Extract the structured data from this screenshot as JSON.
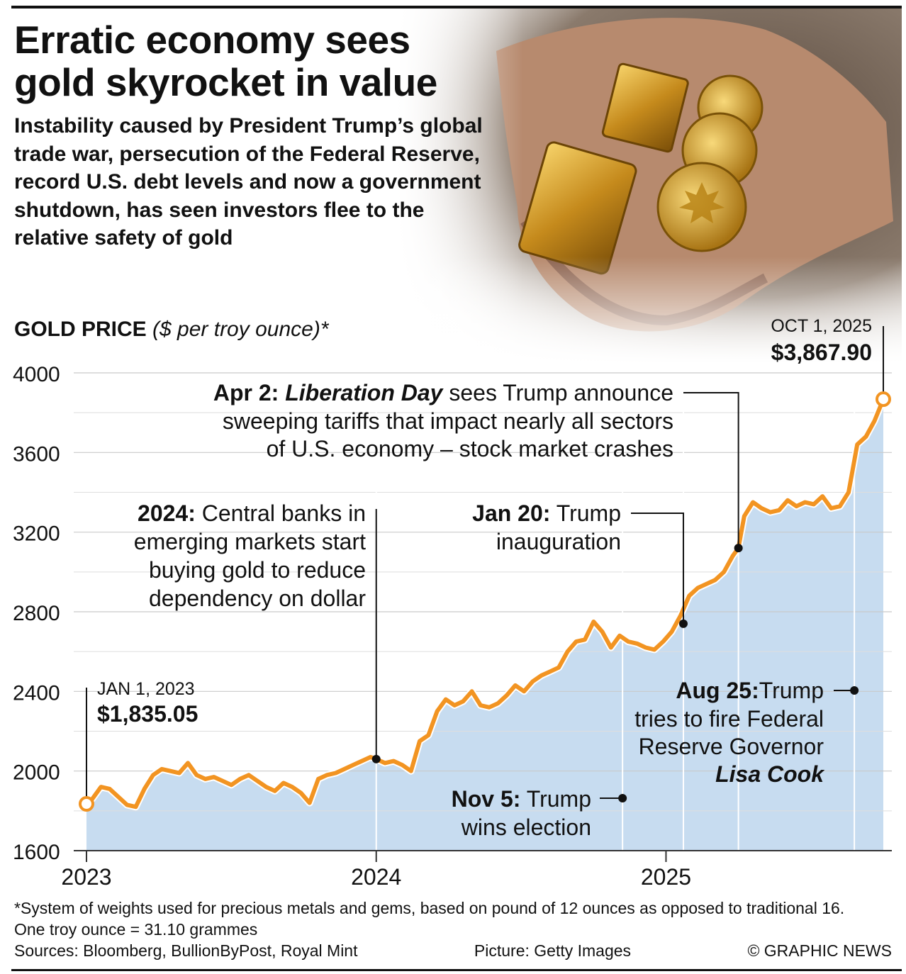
{
  "header": {
    "title_line1": "Erratic economy sees",
    "title_line2": "gold skyrocket in value",
    "subtitle": "Instability caused by President Trump’s global trade war, persecution of the Federal Reserve, record U.S. debt levels and now a government shutdown, has seen investors flee to the relative safety of gold"
  },
  "chart_heading": {
    "bold": "GOLD PRICE",
    "italic": "($ per troy ounce)*"
  },
  "chart_data": {
    "type": "area",
    "title": "GOLD PRICE ($ per troy ounce)*",
    "ylim": [
      1600,
      4000
    ],
    "yticks": [
      1600,
      2000,
      2400,
      2800,
      3200,
      3600,
      4000
    ],
    "ytick_labels": [
      "1600",
      "2000",
      "2400",
      "2800",
      "3200",
      "3600",
      "4000"
    ],
    "xlim": [
      2023.0,
      2025.76
    ],
    "xticks": [
      2023,
      2024,
      2025
    ],
    "xtick_labels": [
      "2023",
      "2024",
      "2025"
    ],
    "grid": "horizontal",
    "line_color": "#F29422",
    "fill_color": "#C7DCF0",
    "series": [
      {
        "x": [
          2023.0,
          2023.02,
          2023.05,
          2023.08,
          2023.11,
          2023.14,
          2023.17,
          2023.2,
          2023.23,
          2023.26,
          2023.29,
          2023.32,
          2023.35,
          2023.38,
          2023.41,
          2023.44,
          2023.47,
          2023.5,
          2023.53,
          2023.56,
          2023.59,
          2023.62,
          2023.65,
          2023.68,
          2023.71,
          2023.74,
          2023.77,
          2023.8,
          2023.83,
          2023.86,
          2023.89,
          2023.92,
          2023.95,
          2023.98,
          2024.0,
          2024.03,
          2024.06,
          2024.09,
          2024.12,
          2024.15,
          2024.18,
          2024.21,
          2024.24,
          2024.27,
          2024.3,
          2024.33,
          2024.36,
          2024.39,
          2024.42,
          2024.45,
          2024.48,
          2024.51,
          2024.54,
          2024.57,
          2024.6,
          2024.63,
          2024.66,
          2024.69,
          2024.72,
          2024.75,
          2024.78,
          2024.81,
          2024.84,
          2024.87,
          2024.9,
          2024.93,
          2024.96,
          2024.99,
          2025.02,
          2025.05,
          2025.08,
          2025.11,
          2025.14,
          2025.17,
          2025.2,
          2025.23,
          2025.25,
          2025.27,
          2025.3,
          2025.33,
          2025.36,
          2025.39,
          2025.42,
          2025.45,
          2025.48,
          2025.51,
          2025.54,
          2025.57,
          2025.6,
          2025.63,
          2025.66,
          2025.69,
          2025.72,
          2025.75
        ],
        "y": [
          1835,
          1860,
          1920,
          1910,
          1870,
          1830,
          1820,
          1910,
          1980,
          2010,
          2000,
          1990,
          2040,
          1980,
          1960,
          1970,
          1950,
          1930,
          1960,
          1980,
          1950,
          1920,
          1900,
          1940,
          1920,
          1890,
          1840,
          1960,
          1980,
          1990,
          2010,
          2030,
          2050,
          2070,
          2060,
          2040,
          2050,
          2030,
          2000,
          2150,
          2180,
          2300,
          2360,
          2330,
          2350,
          2400,
          2330,
          2320,
          2340,
          2380,
          2430,
          2400,
          2450,
          2480,
          2500,
          2520,
          2600,
          2650,
          2660,
          2750,
          2700,
          2620,
          2680,
          2650,
          2640,
          2620,
          2610,
          2650,
          2700,
          2780,
          2880,
          2920,
          2940,
          2960,
          3000,
          3080,
          3120,
          3280,
          3350,
          3320,
          3300,
          3310,
          3360,
          3330,
          3350,
          3340,
          3380,
          3320,
          3330,
          3400,
          3640,
          3680,
          3760,
          3868
        ]
      }
    ],
    "annotations": [
      {
        "id": "start",
        "date": "JAN 1, 2023",
        "value_label": "$1,835.05",
        "x": 2023.0,
        "y": 1835.05
      },
      {
        "id": "end",
        "date": "OCT 1, 2025",
        "value_label": "$3,867.90",
        "x": 2025.75,
        "y": 3867.9
      },
      {
        "id": "cb2024",
        "x": 2024.0,
        "y": 2060,
        "bold": "2024:",
        "lines": [
          " Central banks in",
          "emerging markets start",
          "buying gold to reduce",
          "dependency on dollar"
        ]
      },
      {
        "id": "nov5",
        "x": 2024.85,
        "bold": "Nov 5:",
        "lines": [
          " Trump",
          "wins election"
        ]
      },
      {
        "id": "jan20",
        "x": 2025.06,
        "y": 2740,
        "bold": "Jan 20:",
        "lines": [
          " Trump",
          "inauguration"
        ]
      },
      {
        "id": "apr2",
        "x": 2025.25,
        "y": 3120,
        "bold": "Apr 2:",
        "boldital": "Liberation Day",
        "lines": [
          " sees Trump announce",
          "sweeping tariffs that impact nearly all sectors",
          "of U.S. economy – stock market crashes"
        ]
      },
      {
        "id": "aug25",
        "x": 2025.65,
        "bold": "Aug 25:",
        "lines": [
          "Trump",
          "tries to fire Federal",
          "Reserve Governor"
        ],
        "boldital_line": "Lisa Cook"
      }
    ]
  },
  "footnote": "*System of weights used for precious metals and gems, based on pound of 12 ounces as opposed to traditional 16. One troy ounce = 31.10 grammes",
  "sources": "Sources: Bloomberg, BullionByPost, Royal Mint",
  "picture_credit": "Picture: Getty Images",
  "copyright": "© GRAPHIC NEWS",
  "photo_icon": "hand-holding-gold-bars-and-coins"
}
